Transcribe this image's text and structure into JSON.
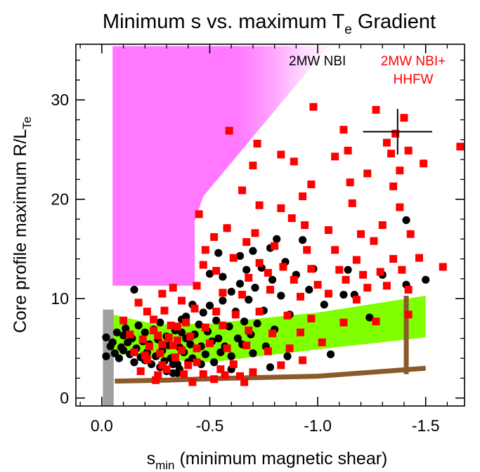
{
  "chart_data": {
    "type": "scatter",
    "title": "Minimum s vs. maximum T",
    "title_subscript": "e",
    "title_suffix": " Gradient",
    "xlabel_main": "s",
    "xlabel_subscript": "min",
    "xlabel_rest": " (minimum magnetic shear)",
    "ylabel_main": "Core profile maximum R/L",
    "ylabel_subscript": "Te",
    "xlim": [
      0.12,
      -1.68
    ],
    "ylim": [
      -0.8,
      35.6
    ],
    "xticks": [
      {
        "value": 0.0,
        "label": "0.0"
      },
      {
        "value": -0.5,
        "label": "-0.5"
      },
      {
        "value": -1.0,
        "label": "-1.0"
      },
      {
        "value": -1.5,
        "label": "-1.5"
      }
    ],
    "yticks": [
      {
        "value": 0,
        "label": "0"
      },
      {
        "value": 10,
        "label": "10"
      },
      {
        "value": 20,
        "label": "20"
      },
      {
        "value": 30,
        "label": "30"
      }
    ],
    "legend": [
      {
        "label": "2MW NBI",
        "color": "#000000"
      },
      {
        "label": "2MW NBI+",
        "color": "#ff0000"
      },
      {
        "label": "HHFW",
        "color": "#ff0000"
      }
    ],
    "colors": {
      "nbi": "#000000",
      "hhfw": "#ff0000",
      "band": "#80ff00",
      "brown": "#8b5a2b",
      "gray": "#a0a0a0",
      "magenta": "#ff66ff"
    },
    "error_bar": {
      "x": -1.37,
      "y": 26.8,
      "xerr": 0.16,
      "yerr": 2.3
    },
    "series": [
      {
        "label_ref": "2MW NBI",
        "marker": "circle",
        "points": [
          [
            -0.02,
            6.1
          ],
          [
            -0.02,
            4.2
          ],
          [
            -0.04,
            5.2
          ],
          [
            -0.05,
            5.6
          ],
          [
            -0.06,
            4.5
          ],
          [
            -0.07,
            6.6
          ],
          [
            -0.08,
            4.0
          ],
          [
            -0.09,
            5.1
          ],
          [
            -0.1,
            6.3
          ],
          [
            -0.1,
            4.8
          ],
          [
            -0.11,
            7.0
          ],
          [
            -0.12,
            5.6
          ],
          [
            -0.13,
            4.4
          ],
          [
            -0.14,
            6.0
          ],
          [
            -0.15,
            3.6
          ],
          [
            -0.15,
            10.9
          ],
          [
            -0.16,
            5.0
          ],
          [
            -0.17,
            7.3
          ],
          [
            -0.18,
            4.1
          ],
          [
            -0.19,
            5.7
          ],
          [
            -0.2,
            3.8
          ],
          [
            -0.2,
            6.6
          ],
          [
            -0.21,
            4.6
          ],
          [
            -0.22,
            5.4
          ],
          [
            -0.23,
            3.4
          ],
          [
            -0.24,
            6.9
          ],
          [
            -0.25,
            4.2
          ],
          [
            -0.26,
            5.9
          ],
          [
            -0.27,
            3.1
          ],
          [
            -0.27,
            7.6
          ],
          [
            -0.28,
            4.8
          ],
          [
            -0.29,
            3.7
          ],
          [
            -0.3,
            6.2
          ],
          [
            -0.3,
            2.7
          ],
          [
            -0.31,
            5.3
          ],
          [
            -0.32,
            4.0
          ],
          [
            -0.33,
            2.5
          ],
          [
            -0.34,
            6.8
          ],
          [
            -0.35,
            3.4
          ],
          [
            -0.36,
            5.1
          ],
          [
            -0.36,
            2.9
          ],
          [
            -0.37,
            7.9
          ],
          [
            -0.38,
            4.6
          ],
          [
            -0.39,
            6.0
          ],
          [
            -0.4,
            3.6
          ],
          [
            -0.41,
            5.4
          ],
          [
            -0.42,
            9.4
          ],
          [
            -0.42,
            4.0
          ],
          [
            -0.43,
            6.4
          ],
          [
            -0.45,
            7.4
          ],
          [
            -0.46,
            5.2
          ],
          [
            -0.47,
            8.6
          ],
          [
            -0.48,
            4.4
          ],
          [
            -0.49,
            6.7
          ],
          [
            -0.5,
            12.5
          ],
          [
            -0.5,
            9.3
          ],
          [
            -0.51,
            5.7
          ],
          [
            -0.52,
            3.6
          ],
          [
            -0.53,
            7.8
          ],
          [
            -0.54,
            14.6
          ],
          [
            -0.54,
            6.0
          ],
          [
            -0.55,
            4.6
          ],
          [
            -0.56,
            12.2
          ],
          [
            -0.56,
            9.8
          ],
          [
            -0.57,
            5.2
          ],
          [
            -0.58,
            17.1
          ],
          [
            -0.59,
            7.2
          ],
          [
            -0.6,
            10.7
          ],
          [
            -0.6,
            4.2
          ],
          [
            -0.62,
            8.7
          ],
          [
            -0.63,
            6.0
          ],
          [
            -0.64,
            14.3
          ],
          [
            -0.64,
            11.5
          ],
          [
            -0.65,
            5.4
          ],
          [
            -0.66,
            7.7
          ],
          [
            -0.67,
            12.9
          ],
          [
            -0.68,
            9.9
          ],
          [
            -0.69,
            6.4
          ],
          [
            -0.7,
            14.8
          ],
          [
            -0.7,
            4.5
          ],
          [
            -0.71,
            11.1
          ],
          [
            -0.72,
            7.5
          ],
          [
            -0.74,
            13.1
          ],
          [
            -0.75,
            8.8
          ],
          [
            -0.76,
            5.2
          ],
          [
            -0.78,
            15.1
          ],
          [
            -0.79,
            11.9
          ],
          [
            -0.8,
            6.9
          ],
          [
            -0.81,
            16.0
          ],
          [
            -0.83,
            10.3
          ],
          [
            -0.85,
            13.7
          ],
          [
            -0.87,
            8.4
          ],
          [
            -0.9,
            12.4
          ],
          [
            -0.93,
            15.9
          ],
          [
            -0.96,
            10.9
          ],
          [
            -0.98,
            13.0
          ],
          [
            -1.03,
            9.4
          ],
          [
            -1.06,
            4.4
          ],
          [
            -1.12,
            10.4
          ],
          [
            -1.14,
            12.9
          ],
          [
            -1.17,
            10.4
          ],
          [
            -1.3,
            12.4
          ],
          [
            -1.41,
            11.4
          ],
          [
            -1.5,
            11.9
          ],
          [
            -1.41,
            17.9
          ],
          [
            -0.33,
            3.4
          ],
          [
            -0.35,
            2.5
          ],
          [
            -0.37,
            6.6
          ],
          [
            -0.39,
            8.2
          ],
          [
            -0.46,
            3.4
          ],
          [
            -0.6,
            2.9
          ],
          [
            -0.78,
            3.1
          ],
          [
            -0.86,
            4.2
          ],
          [
            -1.24,
            8.1
          ]
        ]
      },
      {
        "label_ref": "2MW NBI+ HHFW",
        "marker": "square",
        "points": [
          [
            -1.4,
            28.2
          ],
          [
            -1.36,
            26.6
          ],
          [
            -1.27,
            29.0
          ],
          [
            -0.98,
            29.3
          ],
          [
            -0.59,
            26.9
          ],
          [
            -1.12,
            27.0
          ],
          [
            -1.32,
            25.7
          ],
          [
            -1.66,
            25.3
          ],
          [
            -1.34,
            24.6
          ],
          [
            -1.42,
            24.9
          ],
          [
            -1.14,
            24.9
          ],
          [
            -1.49,
            23.6
          ],
          [
            -1.38,
            22.9
          ],
          [
            -0.72,
            25.6
          ],
          [
            -1.08,
            24.3
          ],
          [
            -0.89,
            23.8
          ],
          [
            -0.83,
            24.5
          ],
          [
            -0.7,
            23.4
          ],
          [
            -0.97,
            21.5
          ],
          [
            -1.23,
            22.6
          ],
          [
            -0.93,
            20.3
          ],
          [
            -1.15,
            21.7
          ],
          [
            -0.65,
            20.9
          ],
          [
            -1.16,
            19.6
          ],
          [
            -0.83,
            19.1
          ],
          [
            -1.35,
            21.3
          ],
          [
            -0.73,
            19.4
          ],
          [
            -0.45,
            18.5
          ],
          [
            -0.88,
            18.1
          ],
          [
            -1.3,
            17.4
          ],
          [
            -1.43,
            16.5
          ],
          [
            -1.38,
            19.2
          ],
          [
            -0.58,
            17.1
          ],
          [
            -1.05,
            16.9
          ],
          [
            -0.94,
            17.4
          ],
          [
            -0.71,
            16.6
          ],
          [
            -1.2,
            16.5
          ],
          [
            -1.26,
            15.8
          ],
          [
            -0.52,
            16.2
          ],
          [
            -0.67,
            15.7
          ],
          [
            -0.8,
            15.3
          ],
          [
            -0.95,
            14.9
          ],
          [
            -1.08,
            14.9
          ],
          [
            -1.18,
            13.9
          ],
          [
            -1.35,
            14.0
          ],
          [
            -1.47,
            14.1
          ],
          [
            -0.48,
            14.9
          ],
          [
            -0.61,
            14.1
          ],
          [
            -0.73,
            13.6
          ],
          [
            -0.84,
            13.2
          ],
          [
            -0.97,
            13.0
          ],
          [
            -1.1,
            12.9
          ],
          [
            -1.21,
            12.4
          ],
          [
            -1.29,
            12.7
          ],
          [
            -1.39,
            12.9
          ],
          [
            -1.58,
            13.2
          ],
          [
            -0.47,
            13.4
          ],
          [
            -0.53,
            12.8
          ],
          [
            -0.68,
            12.1
          ],
          [
            -0.77,
            12.6
          ],
          [
            -0.89,
            11.9
          ],
          [
            -1.0,
            11.4
          ],
          [
            -1.13,
            11.9
          ],
          [
            -1.23,
            11.1
          ],
          [
            -1.32,
            11.3
          ],
          [
            -1.42,
            10.9
          ],
          [
            -0.44,
            11.3
          ],
          [
            -0.56,
            10.6
          ],
          [
            -0.65,
            10.4
          ],
          [
            -0.78,
            10.9
          ],
          [
            -0.92,
            10.2
          ],
          [
            -1.05,
            10.5
          ],
          [
            -1.18,
            9.9
          ],
          [
            -0.28,
            10.5
          ],
          [
            -0.33,
            11.1
          ],
          [
            -0.37,
            9.8
          ],
          [
            -0.43,
            9.0
          ],
          [
            -0.53,
            8.7
          ],
          [
            -0.62,
            8.4
          ],
          [
            -0.73,
            8.7
          ],
          [
            -0.86,
            8.3
          ],
          [
            -0.97,
            8.0
          ],
          [
            -1.12,
            7.6
          ],
          [
            -1.27,
            7.7
          ],
          [
            -1.42,
            8.4
          ],
          [
            -0.17,
            9.6
          ],
          [
            -0.21,
            8.7
          ],
          [
            -0.24,
            7.9
          ],
          [
            -0.29,
            8.8
          ],
          [
            -0.32,
            7.3
          ],
          [
            -0.39,
            7.6
          ],
          [
            -0.48,
            7.1
          ],
          [
            -0.56,
            7.3
          ],
          [
            -0.68,
            6.8
          ],
          [
            -0.79,
            6.5
          ],
          [
            -0.92,
            6.6
          ],
          [
            -1.02,
            5.6
          ],
          [
            -0.1,
            7.8
          ],
          [
            -0.13,
            6.4
          ],
          [
            -0.19,
            5.9
          ],
          [
            -0.24,
            6.8
          ],
          [
            -0.28,
            5.4
          ],
          [
            -0.35,
            5.8
          ],
          [
            -0.41,
            6.2
          ],
          [
            -0.5,
            5.5
          ],
          [
            -0.58,
            5.0
          ],
          [
            -0.67,
            5.3
          ],
          [
            -0.77,
            4.7
          ],
          [
            -0.87,
            5.0
          ],
          [
            -0.93,
            3.8
          ],
          [
            -0.15,
            4.6
          ],
          [
            -0.21,
            3.9
          ],
          [
            -0.28,
            3.3
          ],
          [
            -0.34,
            4.1
          ],
          [
            -0.44,
            3.6
          ],
          [
            -0.55,
            2.9
          ],
          [
            -0.61,
            3.4
          ],
          [
            -0.7,
            2.6
          ],
          [
            -0.83,
            3.3
          ],
          [
            -0.18,
            2.7
          ],
          [
            -0.26,
            2.3
          ],
          [
            -0.38,
            2.4
          ],
          [
            -0.47,
            2.4
          ],
          [
            -0.52,
            1.9
          ],
          [
            -0.64,
            2.2
          ],
          [
            -0.25,
            1.8
          ],
          [
            -0.42,
            1.6
          ],
          [
            -0.66,
            1.6
          ],
          [
            -0.57,
            2.3
          ],
          [
            -0.3,
            2.9
          ],
          [
            -0.4,
            3.3
          ],
          [
            -0.35,
            7.2
          ],
          [
            -0.26,
            6.3
          ],
          [
            -0.22,
            5.2
          ],
          [
            -0.31,
            6.1
          ],
          [
            -0.37,
            4.8
          ],
          [
            -0.44,
            5.0
          ],
          [
            -0.2,
            4.3
          ],
          [
            -0.27,
            4.5
          ],
          [
            -0.33,
            5.3
          ]
        ]
      }
    ],
    "shapes": {
      "magenta_region": [
        [
          -0.05,
          11.3
        ],
        [
          -0.05,
          35.4
        ],
        [
          -1.05,
          35.4
        ],
        [
          -0.47,
          20.3
        ],
        [
          -0.43,
          17.8
        ],
        [
          -0.43,
          11.3
        ]
      ],
      "green_band_top": [
        [
          -0.03,
          8.5
        ],
        [
          -0.25,
          7.4
        ],
        [
          -0.5,
          7.5
        ],
        [
          -1.0,
          8.6
        ],
        [
          -1.5,
          10.3
        ]
      ],
      "green_band_bottom": [
        [
          -0.03,
          4.6
        ],
        [
          -0.25,
          3.9
        ],
        [
          -0.5,
          3.6
        ],
        [
          -1.0,
          4.9
        ],
        [
          -1.5,
          6.1
        ]
      ],
      "brown_line": [
        [
          -0.06,
          1.7
        ],
        [
          -0.3,
          1.8
        ],
        [
          -0.6,
          2.0
        ],
        [
          -1.0,
          2.2
        ],
        [
          -1.5,
          3.0
        ]
      ],
      "brown_vertical": {
        "x": -1.41,
        "y0": 2.4,
        "y1": 10.3
      },
      "gray_bar": {
        "x0": -0.005,
        "x1": -0.055,
        "y0": 0,
        "y1": 8.9
      }
    }
  }
}
